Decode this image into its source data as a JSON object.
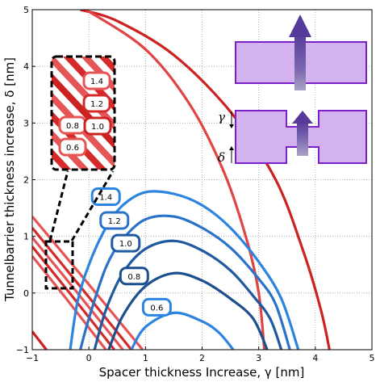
{
  "chart_data": {
    "type": "line",
    "xlabel": "Spacer thickness Increase, γ [nm]",
    "ylabel": "Tunnelbarrier thickness increase, δ [nm]",
    "xlim": [
      -1,
      5
    ],
    "ylim": [
      -1,
      5
    ],
    "xticks": [
      "−1",
      "0",
      "1",
      "2",
      "3",
      "4",
      "5"
    ],
    "yticks": [
      "−1",
      "0",
      "1",
      "2",
      "3",
      "4",
      "5"
    ],
    "grid": true,
    "blue_series": [
      {
        "name": "1.4",
        "color": "#2b84e0",
        "points": [
          [
            -0.33,
            -1
          ],
          [
            -0.2,
            -0.15
          ],
          [
            0,
            0.5
          ],
          [
            0.3,
            1.15
          ],
          [
            0.6,
            1.55
          ],
          [
            1.0,
            1.78
          ],
          [
            1.5,
            1.75
          ],
          [
            2.0,
            1.55
          ],
          [
            2.5,
            1.15
          ],
          [
            3.0,
            0.55
          ],
          [
            3.4,
            -0.1
          ],
          [
            3.7,
            -1
          ]
        ]
      },
      {
        "name": "1.2",
        "color": "#2a72c8",
        "points": [
          [
            -0.15,
            -1
          ],
          [
            0,
            -0.45
          ],
          [
            0.3,
            0.45
          ],
          [
            0.6,
            0.95
          ],
          [
            1.0,
            1.3
          ],
          [
            1.5,
            1.35
          ],
          [
            2.0,
            1.15
          ],
          [
            2.5,
            0.8
          ],
          [
            3.0,
            0.25
          ],
          [
            3.3,
            -0.2
          ],
          [
            3.55,
            -1
          ]
        ]
      },
      {
        "name": "1.0",
        "color": "#1f5aa0",
        "points": [
          [
            0.1,
            -1
          ],
          [
            0.3,
            -0.3
          ],
          [
            0.6,
            0.35
          ],
          [
            1.0,
            0.78
          ],
          [
            1.5,
            0.92
          ],
          [
            2.0,
            0.75
          ],
          [
            2.5,
            0.4
          ],
          [
            2.9,
            -0.05
          ],
          [
            3.2,
            -0.45
          ],
          [
            3.4,
            -1
          ]
        ]
      },
      {
        "name": "0.8",
        "color": "#1d4f8e",
        "points": [
          [
            0.35,
            -1
          ],
          [
            0.6,
            -0.4
          ],
          [
            1.0,
            0.12
          ],
          [
            1.5,
            0.35
          ],
          [
            2.0,
            0.22
          ],
          [
            2.5,
            -0.1
          ],
          [
            2.9,
            -0.45
          ],
          [
            3.15,
            -1
          ]
        ]
      },
      {
        "name": "0.6",
        "color": "#2b84e0",
        "points": [
          [
            0.75,
            -1
          ],
          [
            1.0,
            -0.6
          ],
          [
            1.5,
            -0.35
          ],
          [
            2.0,
            -0.5
          ],
          [
            2.3,
            -0.7
          ],
          [
            2.55,
            -1
          ]
        ]
      }
    ],
    "red_curves": [
      {
        "color": "#cc2222",
        "points": [
          [
            -0.15,
            5
          ],
          [
            0.5,
            4.8
          ],
          [
            1.5,
            4.2
          ],
          [
            2.5,
            3.2
          ],
          [
            3.3,
            2.0
          ],
          [
            3.8,
            0.7
          ],
          [
            4.1,
            -0.3
          ],
          [
            4.25,
            -1
          ]
        ]
      },
      {
        "color": "#e04444",
        "points": [
          [
            -0.05,
            5
          ],
          [
            1.0,
            4.3
          ],
          [
            1.8,
            3.3
          ],
          [
            2.4,
            2.1
          ],
          [
            2.8,
            0.9
          ],
          [
            3.0,
            0.0
          ],
          [
            3.1,
            -1
          ]
        ]
      }
    ],
    "red_lines": [
      {
        "color": "#e65555",
        "points": [
          [
            -1,
            1.35
          ],
          [
            0.0,
            0.15
          ],
          [
            0.95,
            -1
          ]
        ]
      },
      {
        "color": "#d42a2a",
        "points": [
          [
            -1,
            1.15
          ],
          [
            -0.1,
            0.05
          ],
          [
            0.75,
            -1
          ]
        ]
      },
      {
        "color": "#e65555",
        "points": [
          [
            -1,
            0.98
          ],
          [
            -0.2,
            0.0
          ],
          [
            0.6,
            -1
          ]
        ]
      },
      {
        "color": "#d42a2a",
        "points": [
          [
            -1,
            0.82
          ],
          [
            -0.3,
            -0.05
          ],
          [
            0.45,
            -1
          ]
        ]
      },
      {
        "color": "#e65555",
        "points": [
          [
            -1,
            0.65
          ],
          [
            -0.4,
            -0.1
          ],
          [
            0.3,
            -1
          ]
        ]
      },
      {
        "color": "#cc2222",
        "points": [
          [
            -1,
            -0.68
          ],
          [
            -0.75,
            -1
          ]
        ]
      }
    ],
    "blue_labels": [
      {
        "text": "1.4",
        "x": 0.3,
        "y": 1.7
      },
      {
        "text": "1.2",
        "x": 0.45,
        "y": 1.28
      },
      {
        "text": "1.0",
        "x": 0.65,
        "y": 0.88
      },
      {
        "text": "0.8",
        "x": 0.8,
        "y": 0.3
      },
      {
        "text": "0.6",
        "x": 1.2,
        "y": -0.25
      }
    ],
    "inset": {
      "labels": [
        "1.4",
        "1.2",
        "0.8",
        "1.0",
        "0.6"
      ]
    },
    "diagram": {
      "gamma": "γ",
      "delta": "δ"
    }
  }
}
